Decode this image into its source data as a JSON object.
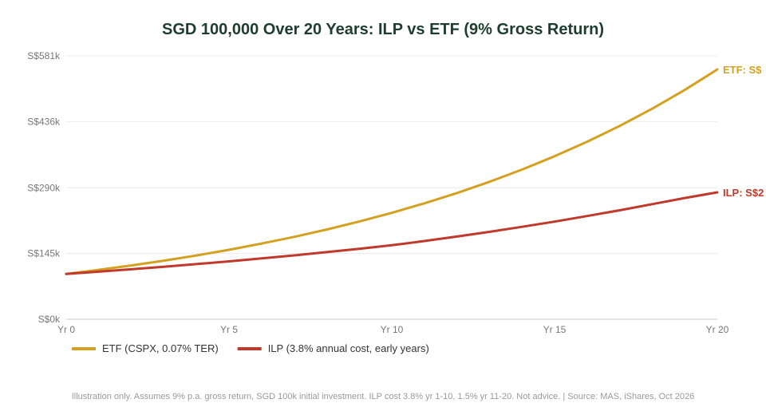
{
  "chart_data": {
    "type": "line",
    "title": "SGD 100,000 Over 20 Years: ILP vs ETF (9% Gross Return)",
    "x_tick_labels": [
      "Yr 0",
      "Yr 5",
      "Yr 10",
      "Yr 15",
      "Yr 20"
    ],
    "x_ticks": [
      0,
      5,
      10,
      15,
      20
    ],
    "xlim": [
      0,
      20
    ],
    "y_tick_labels": [
      "S$0k",
      "S$145k",
      "S$290k",
      "S$436k",
      "S$581k"
    ],
    "y_ticks": [
      0,
      145,
      290,
      436,
      581
    ],
    "ylim": [
      0,
      581
    ],
    "grid": true,
    "legend_position": "bottom-left",
    "series": [
      {
        "name": "ETF (CSPX, 0.07% TER)",
        "color": "#d4a020",
        "end_label": "ETF: S$",
        "x": [
          0,
          1,
          2,
          3,
          4,
          5,
          6,
          7,
          8,
          9,
          10,
          11,
          12,
          13,
          14,
          15,
          16,
          17,
          18,
          19,
          20
        ],
        "values": [
          100,
          108.9,
          118.6,
          129.2,
          140.7,
          153.2,
          166.9,
          181.7,
          197.9,
          215.5,
          234.7,
          255.6,
          278.4,
          303.2,
          330.2,
          359.6,
          391.6,
          426.5,
          464.5,
          505.8,
          551
        ]
      },
      {
        "name": "ILP (3.8% annual cost, early years)",
        "color": "#c0392b",
        "end_label": "ILP: S$2",
        "x": [
          0,
          1,
          2,
          3,
          4,
          5,
          6,
          7,
          8,
          9,
          10,
          11,
          12,
          13,
          14,
          15,
          16,
          17,
          18,
          19,
          20
        ],
        "values": [
          100,
          105,
          110.3,
          115.9,
          121.6,
          127.7,
          134.1,
          140.9,
          148,
          155.4,
          163.2,
          172.5,
          182.4,
          192.8,
          203.8,
          215.4,
          227.6,
          240.4,
          253.8,
          267.5,
          280
        ]
      }
    ],
    "footnote": "Illustration only. Assumes 9% p.a. gross return, SGD 100k initial investment. ILP cost 3.8% yr 1-10, 1.5% yr 11-20. Not advice. | Source: MAS, iShares, Oct 2026"
  },
  "colors": {
    "title": "#1e3d2f",
    "grid": "#ececec",
    "axis": "#cccccc"
  }
}
